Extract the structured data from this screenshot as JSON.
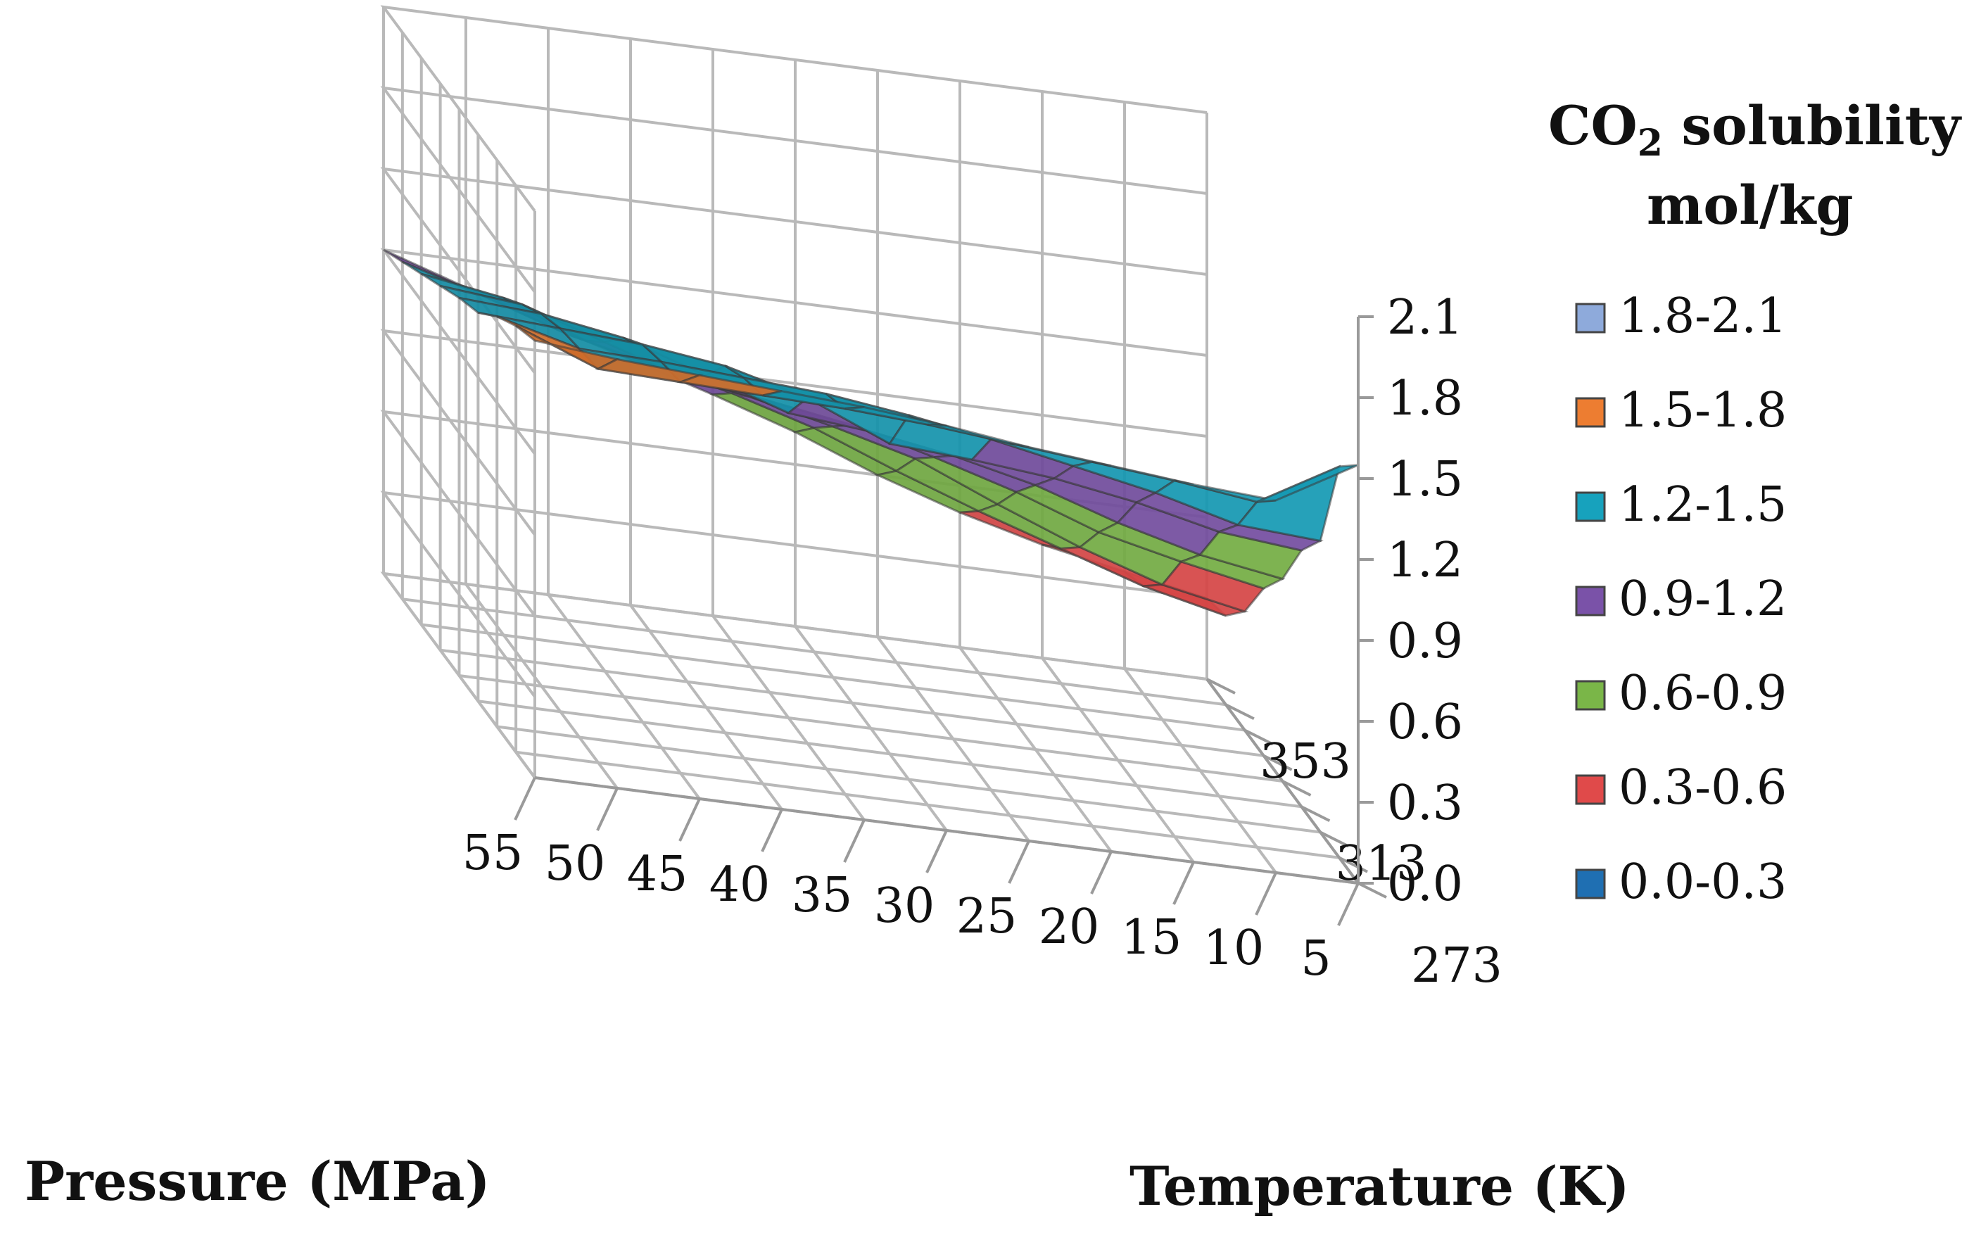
{
  "chart_data": {
    "type": "surface",
    "title": "",
    "legend_title_parts": [
      "CO",
      "2",
      " solubility"
    ],
    "legend_title_line2": "mol/kg",
    "xlabel": "Pressure (MPa)",
    "ylabel": "Temperature (K)",
    "zlabel": "",
    "pressure_ticks": [
      "55",
      "50",
      "45",
      "40",
      "35",
      "30",
      "25",
      "20",
      "15",
      "10",
      "5"
    ],
    "pressure_values": [
      55,
      50,
      45,
      40,
      35,
      30,
      25,
      20,
      15,
      10,
      5
    ],
    "temperature_ticks": [
      "273",
      "313",
      "353"
    ],
    "temperature_values": [
      273,
      283,
      293,
      303,
      313,
      323,
      333,
      343,
      353
    ],
    "z_ticks": [
      "0.0",
      "0.3",
      "0.6",
      "0.9",
      "1.2",
      "1.5",
      "1.8",
      "2.1"
    ],
    "zlim": [
      0,
      2.1
    ],
    "legend": [
      {
        "label": "1.8-2.1",
        "color": "#8eaadb",
        "min": 1.8,
        "max": 2.1
      },
      {
        "label": "1.5-1.8",
        "color": "#ed7d31",
        "min": 1.5,
        "max": 1.8
      },
      {
        "label": "1.2-1.5",
        "color": "#17a2bd",
        "min": 1.2,
        "max": 1.5
      },
      {
        "label": "0.9-1.2",
        "color": "#7a52a8",
        "min": 0.9,
        "max": 1.2
      },
      {
        "label": "0.6-0.9",
        "color": "#7ab648",
        "min": 0.6,
        "max": 0.9
      },
      {
        "label": "0.3-0.6",
        "color": "#e04a4a",
        "min": 0.3,
        "max": 0.6
      },
      {
        "label": "0.0-0.3",
        "color": "#1f6fb2",
        "min": 0.0,
        "max": 0.3
      }
    ],
    "solubility_rows_note": "rows = temperature 273..353 K (step 10), columns = pressure 55..5 MPa",
    "solubility": [
      [
        1.62,
        1.59,
        1.57,
        1.55,
        1.53,
        1.5,
        1.46,
        1.43,
        1.4,
        1.38,
        1.55
      ],
      [
        1.58,
        1.46,
        1.45,
        1.44,
        1.43,
        1.41,
        1.38,
        1.35,
        1.32,
        1.28,
        1.45
      ],
      [
        1.52,
        1.44,
        1.43,
        1.41,
        1.39,
        1.35,
        1.3,
        1.24,
        1.18,
        1.1,
        1.08
      ],
      [
        1.44,
        1.42,
        1.4,
        1.36,
        1.28,
        1.15,
        1.13,
        1.1,
        1.05,
        0.98,
        0.95
      ],
      [
        1.4,
        1.38,
        1.33,
        1.23,
        1.13,
        1.1,
        1.05,
        0.98,
        0.88,
        0.8,
        0.75
      ],
      [
        1.35,
        1.32,
        1.22,
        1.12,
        1.08,
        1.03,
        0.95,
        0.86,
        0.75,
        0.68,
        0.62
      ],
      [
        1.3,
        1.25,
        1.13,
        1.06,
        1.0,
        0.93,
        0.85,
        0.72,
        0.6,
        0.5,
        0.44
      ],
      [
        1.25,
        1.16,
        1.06,
        0.99,
        0.92,
        0.83,
        0.71,
        0.6,
        0.5,
        0.4,
        0.33
      ],
      [
        1.2,
        1.1,
        1.0,
        0.91,
        0.82,
        0.72,
        0.6,
        0.5,
        0.42,
        0.36,
        0.3
      ]
    ]
  }
}
